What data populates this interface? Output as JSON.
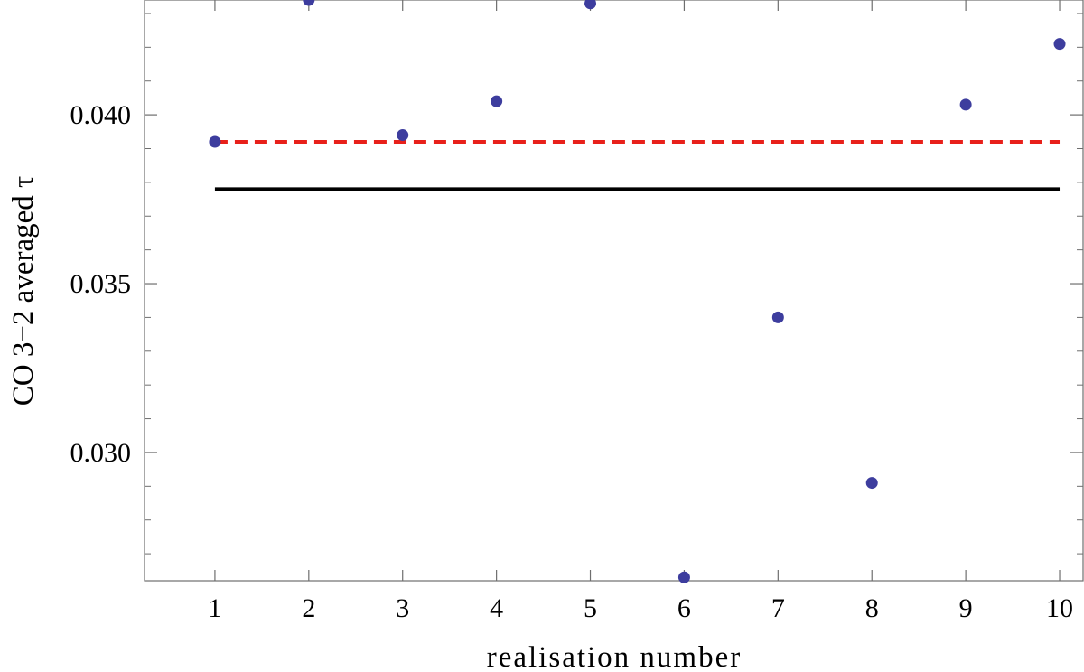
{
  "chart_data": {
    "type": "scatter",
    "title": "",
    "xlabel": "realisation number",
    "ylabel": "CO 3−2 averaged τ",
    "xlim": [
      0.25,
      10.25
    ],
    "ylim": [
      0.0262,
      0.0434
    ],
    "x_ticks": [
      1,
      2,
      3,
      4,
      5,
      6,
      7,
      8,
      9,
      10
    ],
    "y_ticks": [
      0.03,
      0.035,
      0.04
    ],
    "y_tick_labels": [
      "0.030",
      "0.035",
      "0.040"
    ],
    "grid": false,
    "series": [
      {
        "x": [
          1,
          2,
          3,
          4,
          5,
          6,
          7,
          8,
          9,
          10
        ],
        "y": [
          0.0392,
          0.0434,
          0.0394,
          0.0404,
          0.0433,
          0.0263,
          0.034,
          0.0291,
          0.0403,
          0.0421
        ],
        "color": "#3d3d9e"
      }
    ],
    "reference_lines": [
      {
        "y": 0.0392,
        "x_from": 1,
        "x_to": 10,
        "color": "#e8201a",
        "style": "dashed"
      },
      {
        "y": 0.0378,
        "x_from": 1,
        "x_to": 10,
        "color": "#000000",
        "style": "solid"
      }
    ]
  }
}
